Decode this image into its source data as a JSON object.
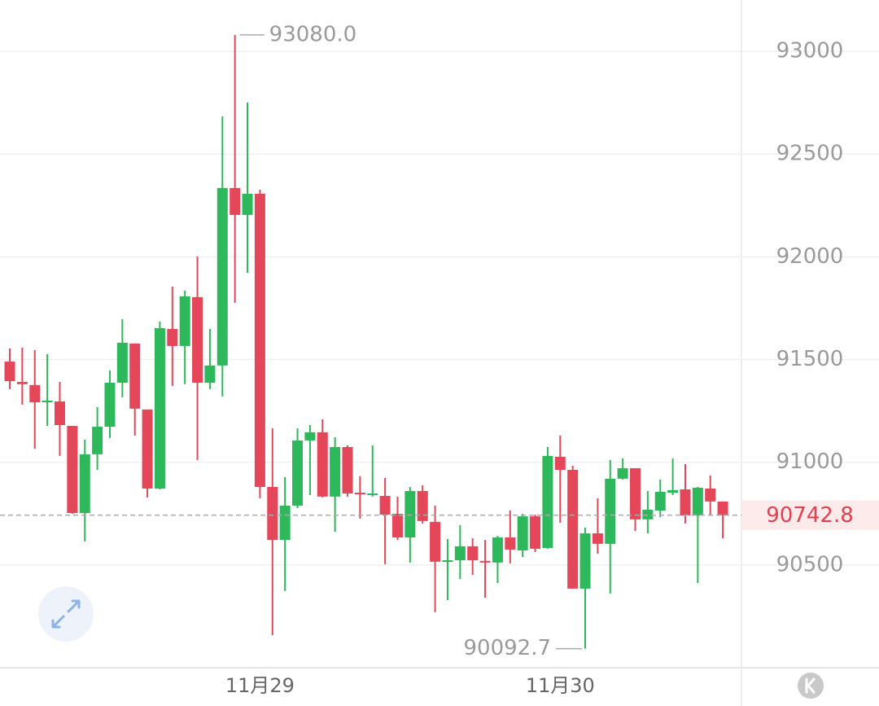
{
  "chart_data": {
    "type": "candlestick",
    "categories": [
      null,
      null,
      null,
      null,
      null,
      null,
      null,
      null,
      null,
      null,
      null,
      null,
      null,
      null,
      null,
      null,
      null,
      null,
      null,
      null,
      "11月29",
      null,
      null,
      null,
      null,
      null,
      null,
      null,
      null,
      null,
      null,
      null,
      null,
      null,
      null,
      null,
      null,
      null,
      null,
      null,
      null,
      null,
      null,
      null,
      "11月30",
      null,
      null,
      null,
      null,
      null,
      null,
      null,
      null,
      null,
      null,
      null,
      null,
      null
    ],
    "open": [
      91490,
      91391,
      91376,
      91292,
      91296,
      91177,
      90753,
      91039,
      91173,
      91387,
      91578,
      91257,
      90872,
      91649,
      91566,
      91804,
      91387,
      91471,
      92335,
      92204,
      92307,
      90880,
      90622,
      90789,
      91106,
      91146,
      90833,
      91074,
      90852,
      90840,
      90836,
      90749,
      90634,
      90860,
      90710,
      90516,
      90523,
      90591,
      90520,
      90512,
      90634,
      90571,
      90737,
      90583,
      91027,
      90963,
      90385,
      90654,
      90603,
      90920,
      90971,
      90722,
      90765,
      90852,
      90868,
      90741,
      90872,
      90809
    ],
    "high": [
      91554,
      91558,
      91546,
      91526,
      91391,
      91177,
      91110,
      91269,
      91447,
      91697,
      91578,
      91257,
      91685,
      91855,
      91835,
      92002,
      91649,
      92683,
      93080,
      92751,
      92327,
      91165,
      90928,
      91165,
      91181,
      91209,
      91122,
      91082,
      90932,
      91082,
      90924,
      90833,
      90880,
      90888,
      90789,
      90626,
      90694,
      90630,
      90622,
      90642,
      90765,
      90749,
      90745,
      91074,
      91130,
      90983,
      90682,
      90825,
      91011,
      91019,
      90971,
      90860,
      90916,
      91019,
      90991,
      90880,
      90936,
      90809
    ],
    "low": [
      91356,
      91280,
      91066,
      91177,
      91031,
      90749,
      90615,
      90963,
      91118,
      91316,
      91130,
      90829,
      90868,
      91372,
      91380,
      91011,
      91356,
      91320,
      91776,
      91922,
      90825,
      90159,
      90373,
      90777,
      90840,
      90829,
      90662,
      90833,
      90726,
      90833,
      90504,
      90622,
      90512,
      90702,
      90270,
      90329,
      90432,
      90452,
      90341,
      90412,
      90508,
      90539,
      90563,
      90579,
      90706,
      90385,
      90092.7,
      90555,
      90361,
      90916,
      90666,
      90654,
      90733,
      90840,
      90702,
      90412,
      90741,
      90630
    ],
    "close": [
      91395,
      91380,
      91292,
      91300,
      91181,
      90753,
      91039,
      91173,
      91387,
      91582,
      91261,
      90872,
      91653,
      91566,
      91808,
      91387,
      91471,
      92335,
      92204,
      92307,
      90880,
      90622,
      90789,
      91106,
      91146,
      90833,
      91074,
      90848,
      90844,
      90848,
      90745,
      90634,
      90860,
      90714,
      90516,
      90523,
      90591,
      90523,
      90512,
      90634,
      90575,
      90737,
      90579,
      91031,
      90963,
      90385,
      90654,
      90603,
      90920,
      90971,
      90722,
      90769,
      90856,
      90864,
      90741,
      90876,
      90809,
      90742.8
    ],
    "up_color": "#2eb85c",
    "down_color": "#e5475a",
    "ylim": [
      90000,
      93250
    ],
    "yticks": [
      90500,
      91000,
      91500,
      92000,
      92500,
      93000
    ],
    "grid": true,
    "max_label": "93080.0",
    "min_label": "90092.7",
    "last_price_label": "90742.8"
  }
}
